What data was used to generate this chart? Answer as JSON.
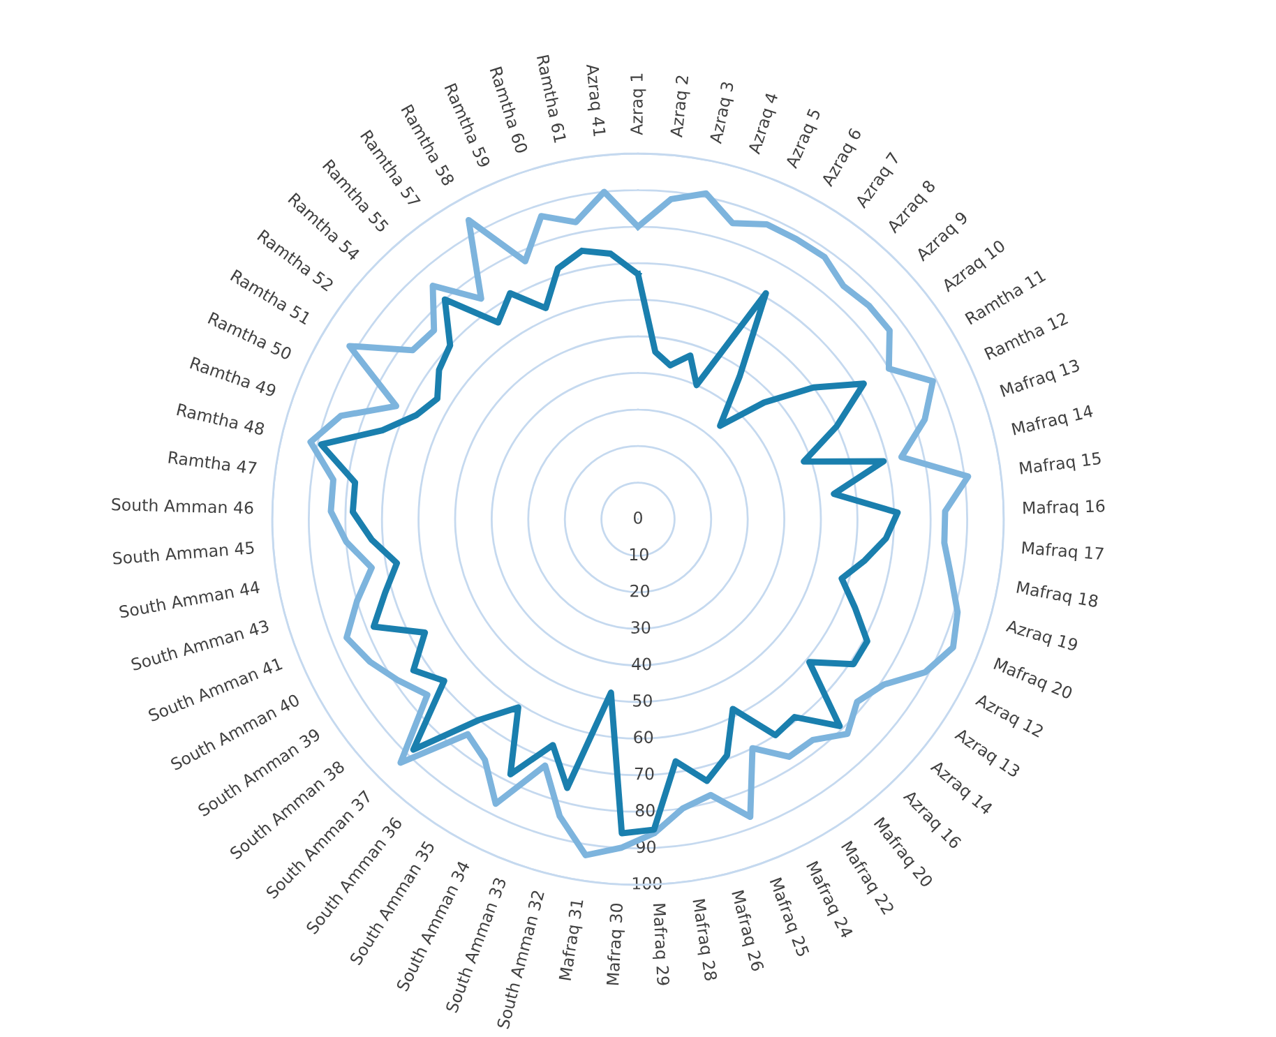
{
  "chart_data": {
    "type": "radar",
    "categories": [
      "Azraq 1",
      "Azraq 2",
      "Azraq 3",
      "Azraq 4",
      "Azraq 5",
      "Azraq 6",
      "Azraq 7",
      "Azraq 8",
      "Azraq 9",
      "Azraq 10",
      "Ramtha 11",
      "Ramtha 12",
      "Mafraq 13",
      "Mafraq 14",
      "Mafraq 15",
      "Mafraq 16",
      "Mafraq 17",
      "Mafraq 18",
      "Azraq 19",
      "Mafraq 20",
      "Azraq 12",
      "Azraq 13",
      "Azraq 14",
      "Azraq 16",
      "Mafraq 20",
      "Mafraq 22",
      "Mafraq 24",
      "Mafraq 25",
      "Mafraq 26",
      "Mafraq 28",
      "Mafraq 29",
      "Mafraq 30",
      "Mafraq 31",
      "South Amman 32",
      "South Amman 33",
      "South Amman 34",
      "South Amman 35",
      "South Amman 36",
      "South Amman 37",
      "South Amman 38",
      "South Amman 39",
      "South Amman 40",
      "South Amman 41",
      "South Amman 43",
      "South Amman 44",
      "South Amman 45",
      "South Amman 46",
      "Ramtha 47",
      "Ramtha 48",
      "Ramtha 49",
      "Ramtha 50",
      "Ramtha 51",
      "Ramtha 52",
      "Ramtha 54",
      "Ramtha 55",
      "Ramtha 57",
      "Ramtha 58",
      "Ramtha 59",
      "Ramtha 60",
      "Ramtha 61",
      "Azraq 41"
    ],
    "series": [
      {
        "color": "#7db4dd",
        "values": [
          80,
          88,
          91,
          85,
          88,
          88,
          88,
          85,
          86,
          86,
          80,
          89,
          83,
          74,
          91,
          84,
          84,
          87,
          91,
          93,
          89,
          81,
          78,
          82,
          77,
          77,
          70,
          87,
          78,
          80,
          86,
          90,
          93,
          84,
          72,
          87,
          78,
          75,
          93,
          75,
          79,
          83,
          86,
          80,
          74,
          80,
          84,
          84,
          92,
          86,
          73,
          92,
          77,
          76,
          85,
          74,
          94,
          77,
          87,
          83,
          90
        ]
      },
      {
        "color": "#1a7fae",
        "values": [
          67,
          46,
          43,
          47,
          40,
          71,
          48,
          34,
          47,
          60,
          72,
          60,
          48,
          69,
          54,
          71,
          68,
          63,
          58,
          64,
          71,
          71,
          61,
          79,
          69,
          70,
          58,
          69,
          74,
          67,
          85,
          86,
          48,
          76,
          66,
          78,
          61,
          70,
          88,
          69,
          74,
          66,
          78,
          72,
          67,
          73,
          78,
          78,
          89,
          74,
          67,
          64,
          68,
          70,
          80,
          66,
          71,
          63,
          72,
          75,
          73
        ]
      }
    ],
    "ylim": [
      0,
      100
    ],
    "yticks": [
      0,
      10,
      20,
      30,
      40,
      50,
      60,
      70,
      80,
      90,
      100
    ],
    "grid": "y",
    "line_style": "solid",
    "marker": "none"
  }
}
